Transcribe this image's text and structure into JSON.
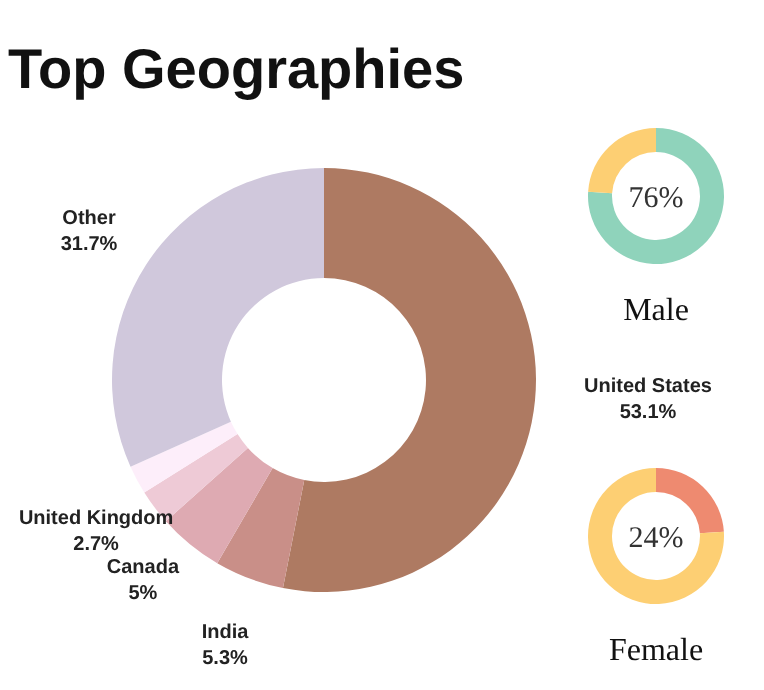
{
  "chart_data": [
    {
      "type": "donut",
      "title": "Top Geographies",
      "categories": [
        "United States",
        "India",
        "Canada",
        "United Kingdom",
        null,
        "Other"
      ],
      "values": [
        53.1,
        5.3,
        5,
        2.7,
        2.2,
        31.7
      ],
      "value_labels": [
        "53.1%",
        "5.3%",
        "5%",
        "2.7%",
        null,
        "31.7%"
      ],
      "colors": [
        "#ae7a62",
        "#c98f88",
        "#deaab2",
        "#eecad6",
        "#fdeefa",
        "#d0c8dc"
      ]
    },
    {
      "type": "donut",
      "title": "Male",
      "categories": [
        null,
        null
      ],
      "values": [
        76,
        24
      ],
      "colors": [
        "#8fd3bb",
        "#fdcf73"
      ],
      "annotations": [
        "76%"
      ]
    },
    {
      "type": "donut",
      "title": "Female",
      "categories": [
        null,
        null
      ],
      "values": [
        24,
        76
      ],
      "colors": [
        "#ee8a70",
        "#fdcf73"
      ],
      "annotations": [
        "24%"
      ]
    }
  ]
}
